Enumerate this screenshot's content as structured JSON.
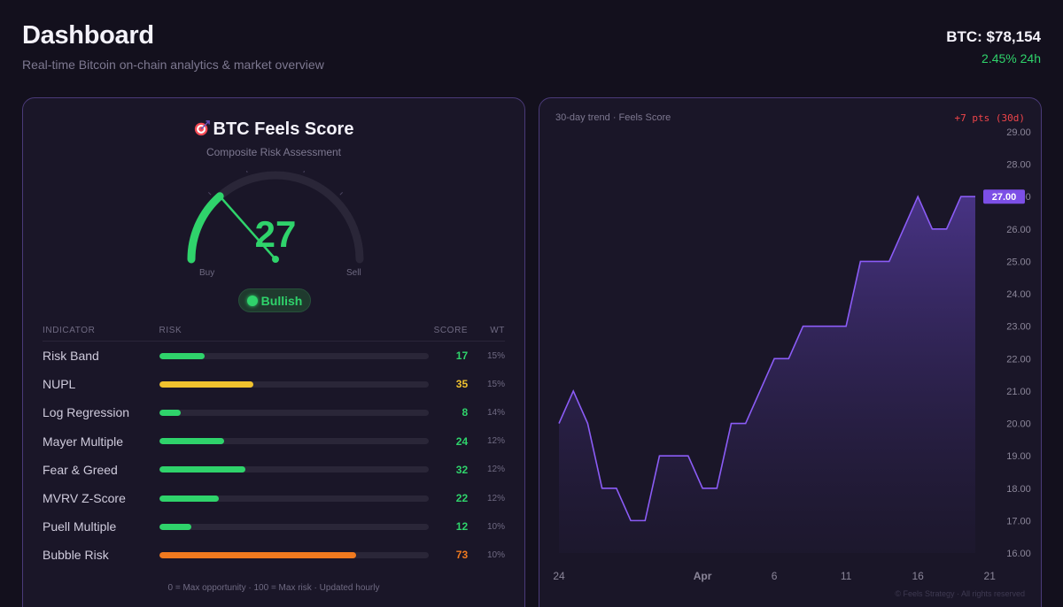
{
  "header": {
    "title": "Dashboard",
    "subtitle": "Real-time Bitcoin on-chain analytics & market overview",
    "price_label": "BTC: $78,154",
    "price_change": "2.45% 24h"
  },
  "score_card": {
    "icon": "target-icon",
    "title": "BTC Feels Score",
    "subtitle": "Composite Risk Assessment",
    "score": "27",
    "score_value": 27,
    "gauge_left_label": "Buy",
    "gauge_right_label": "Sell",
    "sentiment": "Bullish",
    "table_headers": {
      "indicator": "INDICATOR",
      "risk": "RISK",
      "score": "SCORE",
      "weight": "WT"
    },
    "indicators": [
      {
        "name": "Risk Band",
        "score": "17",
        "value": 17,
        "weight": "15%",
        "color": "#2fd36b"
      },
      {
        "name": "NUPL",
        "score": "35",
        "value": 35,
        "weight": "15%",
        "color": "#f0c22e"
      },
      {
        "name": "Log Regression",
        "score": "8",
        "value": 8,
        "weight": "14%",
        "color": "#2fd36b"
      },
      {
        "name": "Mayer Multiple",
        "score": "24",
        "value": 24,
        "weight": "12%",
        "color": "#2fd36b"
      },
      {
        "name": "Fear & Greed",
        "score": "32",
        "value": 32,
        "weight": "12%",
        "color": "#2fd36b"
      },
      {
        "name": "MVRV Z-Score",
        "score": "22",
        "value": 22,
        "weight": "12%",
        "color": "#2fd36b"
      },
      {
        "name": "Puell Multiple",
        "score": "12",
        "value": 12,
        "weight": "10%",
        "color": "#2fd36b"
      },
      {
        "name": "Bubble Risk",
        "score": "73",
        "value": 73,
        "weight": "10%",
        "color": "#f07a1f"
      }
    ],
    "footnote": "0 = Max opportunity · 100 = Max risk · Updated hourly"
  },
  "trend": {
    "caption": "30-day trend · Feels Score",
    "delta": "+7 pts (30d)",
    "credit": "© Feels Strategy · All rights reserved"
  },
  "chart_data": {
    "type": "area",
    "title": "30-day trend · Feels Score",
    "x_tick_labels": [
      "24",
      "Apr",
      "6",
      "11",
      "16",
      "21"
    ],
    "x_tick_index": [
      0,
      10,
      15,
      20,
      25,
      30
    ],
    "y_tick_labels": [
      "16.00",
      "17.00",
      "18.00",
      "19.00",
      "20.00",
      "21.00",
      "22.00",
      "23.00",
      "24.00",
      "25.00",
      "26.00",
      "27.00",
      "28.00",
      "29.00"
    ],
    "ylim": [
      16,
      29
    ],
    "values": [
      20,
      21,
      20,
      18,
      18,
      17,
      17,
      19,
      19,
      19,
      18,
      18,
      20,
      20,
      21,
      22,
      22,
      23,
      23,
      23,
      23,
      25,
      25,
      25,
      26,
      27,
      26,
      26,
      27,
      27
    ],
    "last_value_label": "27.00",
    "line_color": "#8b5cf6"
  }
}
